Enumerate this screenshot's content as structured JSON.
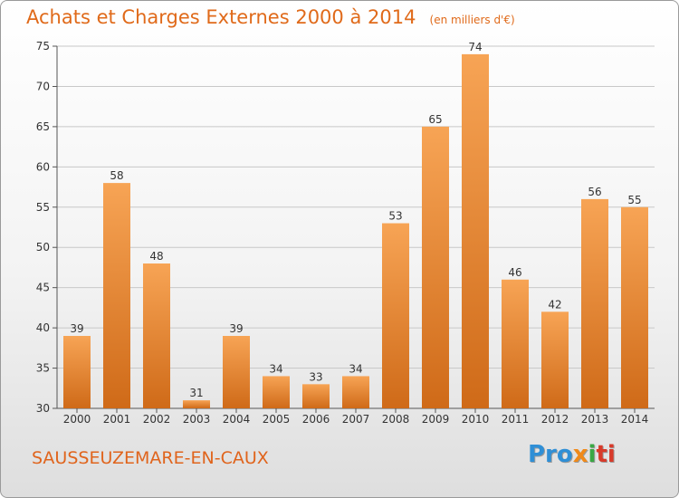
{
  "header": {
    "title": "Achats et Charges Externes 2000 à 2014",
    "unit": "(en milliers d'€)"
  },
  "footer": {
    "commune": "SAUSSEUZEMARE-EN-CAUX",
    "brand_parts": [
      "Pro",
      "x",
      "i",
      "ti"
    ]
  },
  "chart_data": {
    "type": "bar",
    "title": "Achats et Charges Externes 2000 à 2014",
    "subtitle": "(en milliers d'€)",
    "categories": [
      "2000",
      "2001",
      "2002",
      "2003",
      "2004",
      "2005",
      "2006",
      "2007",
      "2008",
      "2009",
      "2010",
      "2011",
      "2012",
      "2013",
      "2014"
    ],
    "values": [
      39,
      58,
      48,
      31,
      39,
      34,
      33,
      34,
      53,
      65,
      74,
      46,
      42,
      56,
      55
    ],
    "ylim": [
      30,
      75
    ],
    "yticks": [
      30,
      35,
      40,
      45,
      50,
      55,
      60,
      65,
      70,
      75
    ],
    "grid": true,
    "colors": {
      "bar_light": "#f7a455",
      "bar_dark": "#cf6a18",
      "grid": "#c8c8c8",
      "text": "#333333"
    }
  }
}
